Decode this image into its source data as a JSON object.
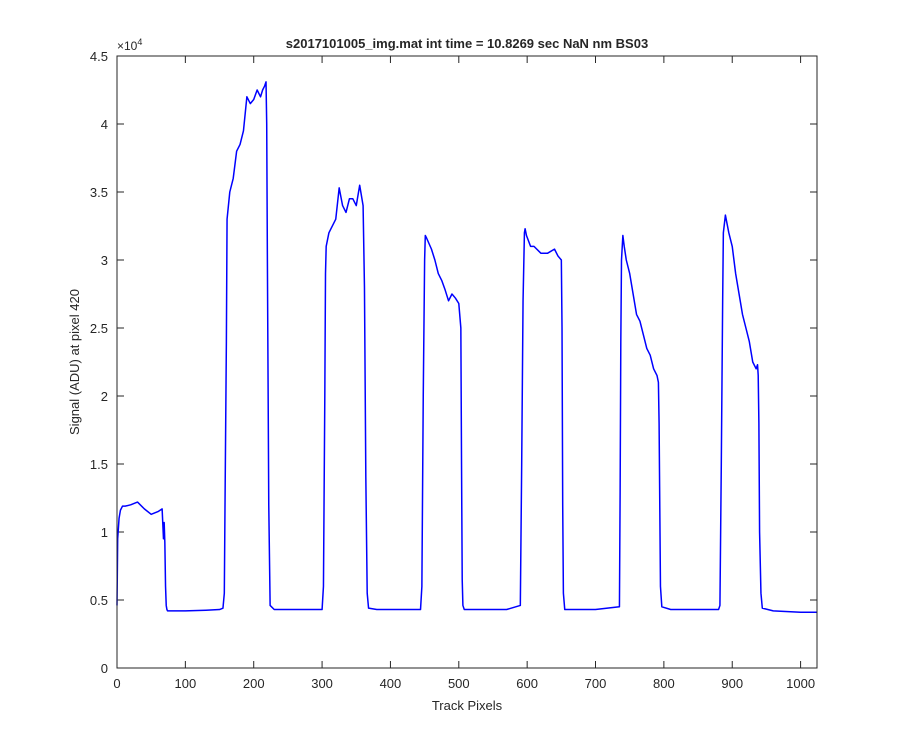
{
  "chart_data": {
    "type": "line",
    "title": "s2017101005_img.mat int time = 10.8269 sec  NaN nm BS03",
    "xlabel": "Track Pixels",
    "ylabel": "Signal (ADU) at pixel 420",
    "y_exponent_label": "×10",
    "y_exponent_power": "4",
    "xlim": [
      0,
      1024
    ],
    "ylim": [
      0,
      45000
    ],
    "x_ticks": [
      0,
      100,
      200,
      300,
      400,
      500,
      600,
      700,
      800,
      900,
      1000
    ],
    "x_tick_labels": [
      "0",
      "100",
      "200",
      "300",
      "400",
      "500",
      "600",
      "700",
      "800",
      "900",
      "1000"
    ],
    "y_ticks": [
      0,
      5000,
      10000,
      15000,
      20000,
      25000,
      30000,
      35000,
      40000,
      45000
    ],
    "y_tick_labels": [
      "0",
      "0.5",
      "1",
      "1.5",
      "2",
      "2.5",
      "3",
      "3.5",
      "4",
      "4.5"
    ],
    "grid": false,
    "line_color": "#0000ff",
    "series": [
      {
        "x": [
          0,
          1,
          3,
          5,
          8,
          12,
          20,
          30,
          40,
          50,
          60,
          66,
          68,
          69,
          70,
          71,
          72,
          73,
          74,
          80,
          100,
          130,
          150,
          155,
          157,
          158,
          160,
          161,
          165,
          170,
          175,
          180,
          185,
          190,
          195,
          200,
          205,
          210,
          213,
          216,
          218,
          219,
          220,
          222,
          224,
          230,
          260,
          290,
          300,
          302,
          304,
          305,
          306,
          310,
          320,
          325,
          330,
          335,
          340,
          345,
          350,
          355,
          360,
          362,
          364,
          366,
          368,
          380,
          420,
          444,
          446,
          448,
          450,
          451,
          453,
          460,
          465,
          470,
          475,
          480,
          485,
          490,
          495,
          500,
          503,
          504,
          505,
          506,
          508,
          520,
          570,
          590,
          592,
          594,
          596,
          597,
          599,
          605,
          610,
          620,
          630,
          640,
          645,
          650,
          651,
          652,
          653,
          655,
          660,
          700,
          735,
          736,
          737,
          738,
          740,
          742,
          745,
          750,
          755,
          760,
          765,
          770,
          775,
          780,
          785,
          790,
          792,
          793,
          794,
          795,
          797,
          810,
          860,
          880,
          882,
          884,
          886,
          887,
          890,
          895,
          900,
          905,
          910,
          915,
          920,
          925,
          930,
          935,
          937,
          938,
          939,
          940,
          942,
          944,
          960,
          1000,
          1024
        ],
        "y": [
          4600,
          9500,
          11000,
          11600,
          11900,
          11900,
          12000,
          12200,
          11700,
          11300,
          11500,
          11700,
          9500,
          10700,
          9200,
          6000,
          4600,
          4300,
          4200,
          4200,
          4200,
          4250,
          4300,
          4400,
          5500,
          12000,
          24000,
          33000,
          35000,
          36000,
          38000,
          38500,
          39500,
          42000,
          41500,
          41800,
          42500,
          42000,
          42500,
          42800,
          43100,
          40000,
          30000,
          12000,
          4600,
          4300,
          4300,
          4300,
          4300,
          6000,
          20000,
          29000,
          31000,
          32000,
          33000,
          35300,
          34000,
          33500,
          34500,
          34500,
          34000,
          35500,
          34000,
          28000,
          14000,
          5500,
          4400,
          4300,
          4300,
          4300,
          6000,
          20000,
          30000,
          31800,
          31600,
          30800,
          30000,
          29000,
          28500,
          27800,
          27000,
          27500,
          27200,
          26800,
          25000,
          15000,
          6500,
          4600,
          4300,
          4300,
          4300,
          4600,
          15000,
          27000,
          32000,
          32300,
          31800,
          31000,
          31000,
          30500,
          30500,
          30800,
          30300,
          30000,
          25000,
          12000,
          5500,
          4300,
          4300,
          4300,
          4500,
          13000,
          24000,
          30000,
          31800,
          31000,
          30000,
          29000,
          27500,
          26000,
          25500,
          24500,
          23500,
          23000,
          22000,
          21500,
          21000,
          18000,
          12000,
          6000,
          4500,
          4300,
          4300,
          4300,
          4600,
          15000,
          27000,
          32000,
          33300,
          32000,
          31000,
          29000,
          27500,
          26000,
          25000,
          24000,
          22500,
          22000,
          22300,
          21500,
          18000,
          10000,
          5500,
          4400,
          4200,
          4100,
          4100
        ]
      }
    ]
  }
}
